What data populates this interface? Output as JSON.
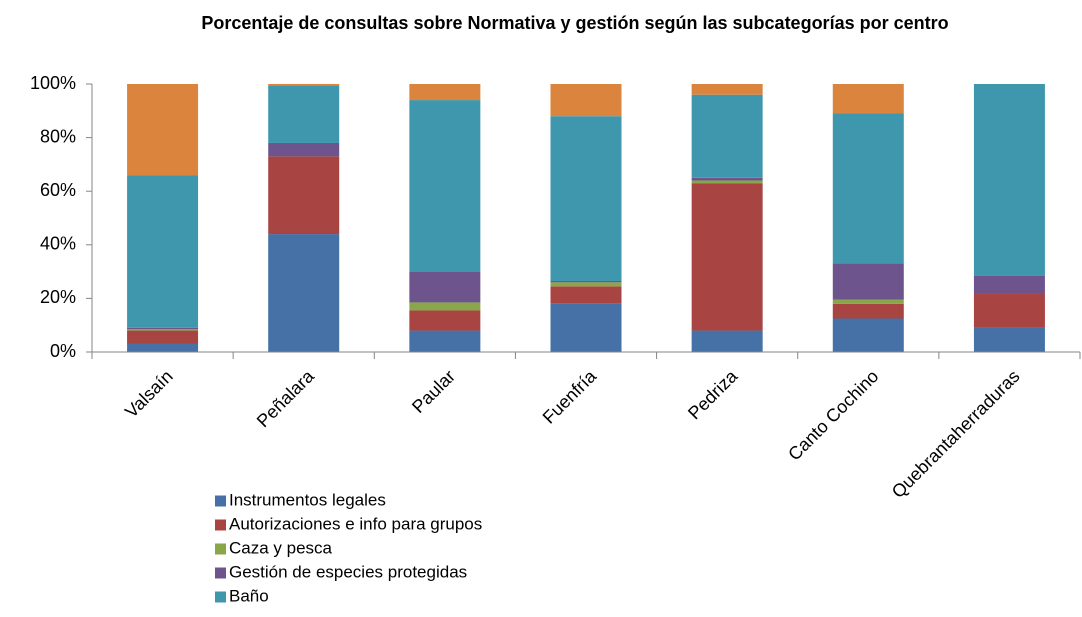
{
  "chart_data": {
    "type": "stacked_bar",
    "title": "Porcentaje de consultas sobre Normativa y gestión según las subcategorías por centro",
    "categories": [
      "Valsaín",
      "Peñalara",
      "Paular",
      "Fuenfría",
      "Pedriza",
      "Canto Cochino",
      "Quebrantaherraduras"
    ],
    "series": [
      {
        "name": "Instrumentos legales",
        "color": "#4571a7",
        "values": [
          3,
          44,
          8,
          18,
          8,
          12.5,
          9
        ]
      },
      {
        "name": "Autorizaciones e info para grupos",
        "color": "#a84441",
        "values": [
          5,
          29,
          7.5,
          6.5,
          55,
          5.5,
          13
        ]
      },
      {
        "name": "Caza y pesca",
        "color": "#8aa64a",
        "values": [
          0.5,
          0,
          3,
          1.5,
          1,
          1.5,
          0
        ]
      },
      {
        "name": "Gestión de especies protegidas",
        "color": "#6e548d",
        "values": [
          0.5,
          5,
          11.5,
          0.5,
          1,
          13.5,
          6.5
        ]
      },
      {
        "name": "Baño",
        "color": "#3f97ae",
        "values": [
          57,
          21.5,
          64,
          61.5,
          31,
          56,
          71.5
        ]
      },
      {
        "color": "#db843d",
        "values": [
          34,
          0.5,
          6,
          12,
          4,
          11,
          0
        ]
      }
    ],
    "ylim": [
      0,
      100
    ],
    "yticks": [
      {
        "value": 0,
        "label": "0%"
      },
      {
        "value": 20,
        "label": "20%"
      },
      {
        "value": 40,
        "label": "40%"
      },
      {
        "value": 60,
        "label": "60%"
      },
      {
        "value": 80,
        "label": "80%"
      },
      {
        "value": 100,
        "label": "100%"
      }
    ],
    "grid": false
  }
}
